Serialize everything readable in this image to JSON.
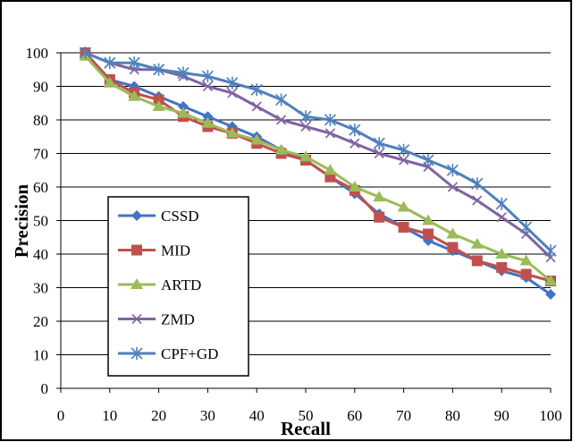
{
  "chart_data": {
    "type": "line",
    "xlabel": "Recall",
    "ylabel": "Precision",
    "x": [
      5,
      10,
      15,
      20,
      25,
      30,
      35,
      40,
      45,
      50,
      55,
      60,
      65,
      70,
      75,
      80,
      85,
      90,
      95,
      100
    ],
    "xlim": [
      0,
      100
    ],
    "ylim": [
      0,
      100
    ],
    "xticks": [
      "0",
      "10",
      "20",
      "30",
      "40",
      "50",
      "60",
      "70",
      "80",
      "90",
      "100"
    ],
    "yticks": [
      "0",
      "10",
      "20",
      "30",
      "40",
      "50",
      "60",
      "70",
      "80",
      "90",
      "100"
    ],
    "grid": "horizontal",
    "legend_position": "left",
    "series": [
      {
        "name": "CSSD",
        "color": "#4472C4",
        "marker": "diamond",
        "values": [
          100,
          92,
          90,
          87,
          84,
          81,
          78,
          75,
          71,
          68,
          63,
          58,
          52,
          48,
          44,
          41,
          38,
          35,
          33,
          28
        ]
      },
      {
        "name": "MID",
        "color": "#C0504D",
        "marker": "square",
        "values": [
          100,
          92,
          88,
          86,
          81,
          78,
          76,
          73,
          70,
          68,
          63,
          59,
          51,
          48,
          46,
          42,
          38,
          36,
          34,
          32
        ]
      },
      {
        "name": "ARTD",
        "color": "#9BBB59",
        "marker": "triangle",
        "values": [
          99,
          91,
          87,
          84,
          82,
          79,
          76,
          74,
          71,
          69,
          65,
          60,
          57,
          54,
          50,
          46,
          43,
          40,
          38,
          32
        ]
      },
      {
        "name": "ZMD",
        "color": "#8064A2",
        "marker": "x",
        "values": [
          100,
          97,
          95,
          95,
          93,
          90,
          88,
          84,
          80,
          78,
          76,
          73,
          70,
          68,
          66,
          60,
          56,
          51,
          46,
          39
        ]
      },
      {
        "name": "CPF+GD",
        "color": "#4F81BD",
        "marker": "star",
        "values": [
          100,
          97,
          97,
          95,
          94,
          93,
          91,
          89,
          86,
          81,
          80,
          77,
          73,
          71,
          68,
          65,
          61,
          55,
          48,
          41
        ]
      }
    ]
  }
}
